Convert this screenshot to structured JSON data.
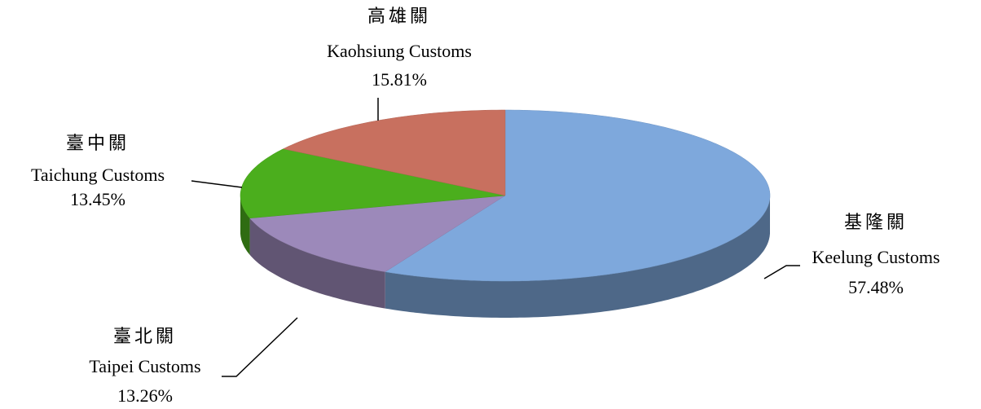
{
  "chart_data": {
    "type": "pie3d",
    "categories": [
      [
        "基隆關",
        "Keelung Customs"
      ],
      [
        "臺北關",
        "Taipei Customs"
      ],
      [
        "臺中關",
        "Taichung Customs"
      ],
      [
        "高雄關",
        "Kaohsiung Customs"
      ]
    ],
    "values": [
      57.48,
      13.26,
      13.45,
      15.81
    ],
    "value_labels": [
      "57.48%",
      "13.26%",
      "13.45%",
      "15.81%"
    ],
    "colors": [
      "#7ea8dc",
      "#9c89ba",
      "#4bae1d",
      "#c8705f"
    ]
  }
}
